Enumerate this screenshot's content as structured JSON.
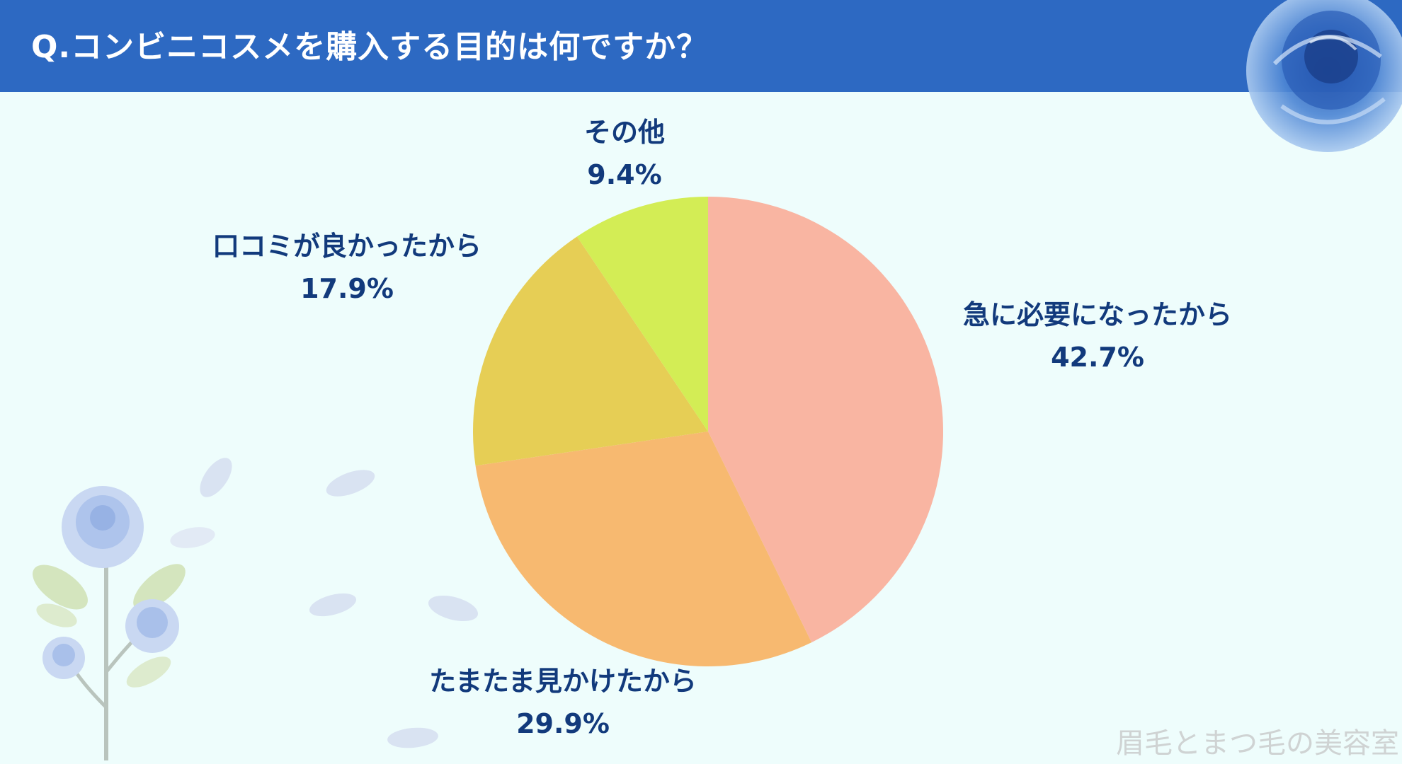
{
  "header": {
    "title": "Q.コンビニコスメを購入する目的は何ですか？"
  },
  "chart_data": {
    "type": "pie",
    "slices": [
      {
        "label": "急に必要になったから",
        "value": 42.7,
        "display": "42.7%",
        "color": "#f9b5a2"
      },
      {
        "label": "たまたま見かけたから",
        "value": 29.9,
        "display": "29.9%",
        "color": "#f7b970"
      },
      {
        "label": "口コミが良かったから",
        "value": 17.9,
        "display": "17.9%",
        "color": "#e6ce55"
      },
      {
        "label": "その他",
        "value": 9.4,
        "display": "9.4%",
        "color": "#d3ed55"
      }
    ],
    "start_angle_deg": 0,
    "direction": "clockwise"
  },
  "watermark": "眉毛とまつ毛の美容室",
  "colors": {
    "header": "#2d69c2",
    "label_text": "#123a7c",
    "background": "#eefdfc"
  },
  "decorations": [
    "blue-rose-icon",
    "white-rose-icon",
    "petal-icon"
  ]
}
